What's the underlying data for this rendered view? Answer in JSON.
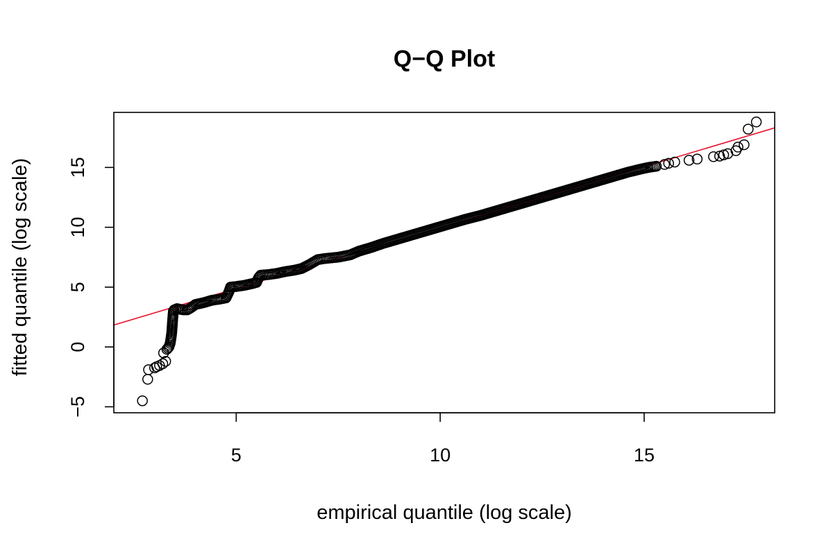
{
  "chart_data": {
    "type": "scatter",
    "title": "Q−Q Plot",
    "xlabel": "empirical quantile (log scale)",
    "ylabel": "fitted quantile (log scale)",
    "xlim": [
      2.0,
      18.2
    ],
    "ylim": [
      -5.5,
      19.6
    ],
    "x_ticks": [
      5,
      10,
      15
    ],
    "x_tick_labels": [
      "5",
      "10",
      "15"
    ],
    "y_ticks": [
      -5,
      0,
      5,
      10,
      15
    ],
    "y_tick_labels": [
      "−5",
      "0",
      "5",
      "10",
      "15"
    ],
    "grid": false,
    "reference_line": {
      "intercept": -0.2,
      "slope": 1.017,
      "color": "#e8112d"
    },
    "point_style": {
      "shape": "open-circle",
      "color": "#000000"
    },
    "points": [
      [
        2.7,
        -4.5
      ],
      [
        2.83,
        -2.7
      ],
      [
        2.85,
        -1.9
      ],
      [
        3.0,
        -1.75
      ],
      [
        3.05,
        -1.65
      ],
      [
        3.12,
        -1.55
      ],
      [
        3.2,
        -1.4
      ],
      [
        3.27,
        -1.2
      ],
      [
        3.22,
        -0.5
      ],
      [
        3.3,
        -0.2
      ],
      [
        3.35,
        0.0
      ],
      [
        3.38,
        0.3
      ],
      [
        3.4,
        0.7
      ],
      [
        3.42,
        1.2
      ],
      [
        3.43,
        1.7
      ],
      [
        3.44,
        2.2
      ],
      [
        3.45,
        2.6
      ],
      [
        3.46,
        3.0
      ],
      [
        3.48,
        3.1
      ],
      [
        3.55,
        3.2
      ],
      [
        3.7,
        3.1
      ],
      [
        3.8,
        3.1
      ],
      [
        3.9,
        3.3
      ],
      [
        4.0,
        3.55
      ],
      [
        4.2,
        3.7
      ],
      [
        4.4,
        3.9
      ],
      [
        4.6,
        4.0
      ],
      [
        4.75,
        4.1
      ],
      [
        4.82,
        4.6
      ],
      [
        4.86,
        5.0
      ],
      [
        5.0,
        5.05
      ],
      [
        5.2,
        5.15
      ],
      [
        5.4,
        5.3
      ],
      [
        5.5,
        5.4
      ],
      [
        5.55,
        5.8
      ],
      [
        5.6,
        6.0
      ],
      [
        5.8,
        6.05
      ],
      [
        6.0,
        6.15
      ],
      [
        6.2,
        6.3
      ],
      [
        6.4,
        6.4
      ],
      [
        6.6,
        6.55
      ],
      [
        6.8,
        6.9
      ],
      [
        7.0,
        7.3
      ],
      [
        7.2,
        7.4
      ],
      [
        7.5,
        7.5
      ],
      [
        7.8,
        7.7
      ],
      [
        8.0,
        8.0
      ],
      [
        8.3,
        8.3
      ],
      [
        8.6,
        8.65
      ],
      [
        9.0,
        9.05
      ],
      [
        9.4,
        9.45
      ],
      [
        9.8,
        9.85
      ],
      [
        10.2,
        10.25
      ],
      [
        10.6,
        10.65
      ],
      [
        11.0,
        11.0
      ],
      [
        11.4,
        11.4
      ],
      [
        11.8,
        11.8
      ],
      [
        12.2,
        12.2
      ],
      [
        12.6,
        12.6
      ],
      [
        13.0,
        13.0
      ],
      [
        13.4,
        13.4
      ],
      [
        13.8,
        13.8
      ],
      [
        14.2,
        14.2
      ],
      [
        14.6,
        14.6
      ],
      [
        14.9,
        14.85
      ],
      [
        15.1,
        15.0
      ],
      [
        15.3,
        15.1
      ],
      [
        15.5,
        15.25
      ],
      [
        15.6,
        15.35
      ],
      [
        15.75,
        15.45
      ],
      [
        16.1,
        15.6
      ],
      [
        16.3,
        15.7
      ],
      [
        16.7,
        15.9
      ],
      [
        16.85,
        15.95
      ],
      [
        16.95,
        16.05
      ],
      [
        17.05,
        16.15
      ],
      [
        17.25,
        16.4
      ],
      [
        17.3,
        16.7
      ],
      [
        17.45,
        16.9
      ],
      [
        17.55,
        18.2
      ],
      [
        17.75,
        18.8
      ]
    ]
  }
}
